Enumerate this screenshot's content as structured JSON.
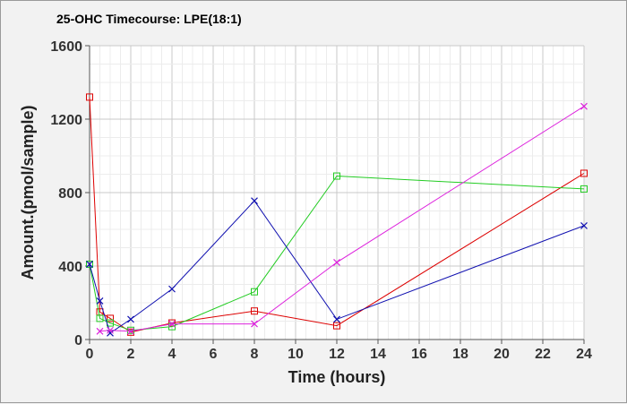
{
  "chart_data": {
    "type": "line",
    "title": "25-OHC Timecourse: LPE(18:1)",
    "xlabel": "Time (hours)",
    "ylabel": "Amount.(pmol/sample)",
    "xlim": [
      0,
      24
    ],
    "ylim": [
      0,
      1600
    ],
    "x_ticks": [
      0,
      2,
      4,
      6,
      8,
      10,
      12,
      14,
      16,
      18,
      20,
      22,
      24
    ],
    "y_ticks": [
      0,
      400,
      800,
      1200,
      1600
    ],
    "grid": true,
    "series": [
      {
        "color": "#dd0000",
        "marker": "square",
        "x": [
          0,
          0.5,
          1,
          2,
          4,
          8,
          12,
          24
        ],
        "y": [
          1320,
          150,
          115,
          40,
          90,
          155,
          75,
          905
        ]
      },
      {
        "color": "#22cc22",
        "marker": "square",
        "x": [
          0,
          0.5,
          1,
          2,
          4,
          8,
          12,
          24
        ],
        "y": [
          410,
          115,
          90,
          50,
          70,
          260,
          890,
          820
        ]
      },
      {
        "color": "#1010b0",
        "marker": "x",
        "x": [
          0,
          0.5,
          1,
          2,
          4,
          8,
          12,
          24
        ],
        "y": [
          410,
          210,
          35,
          110,
          275,
          755,
          110,
          620
        ]
      },
      {
        "color": "#dd22dd",
        "marker": "x",
        "x": [
          0.5,
          1,
          2,
          4,
          8,
          12,
          24
        ],
        "y": [
          45,
          50,
          45,
          85,
          85,
          420,
          1270
        ]
      }
    ]
  }
}
